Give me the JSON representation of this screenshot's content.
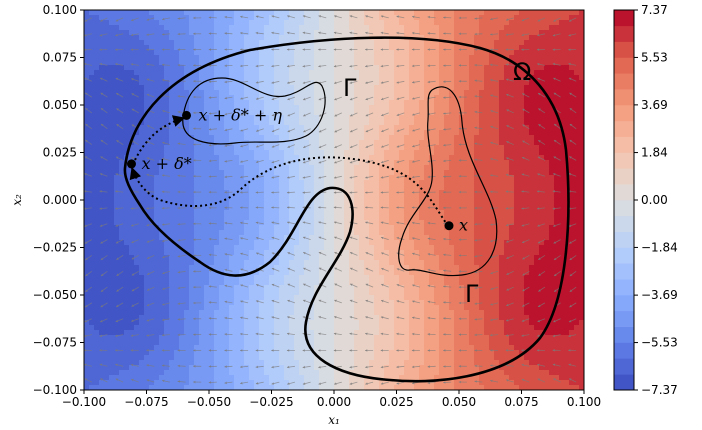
{
  "chart_data": {
    "type": "heatmap",
    "xlabel": "x₁",
    "ylabel": "x₂",
    "xlim": [
      -0.1,
      0.1
    ],
    "ylim": [
      -0.1,
      0.1
    ],
    "x_ticks": [
      -0.1,
      -0.075,
      -0.05,
      -0.025,
      0.0,
      0.025,
      0.05,
      0.075,
      0.1
    ],
    "x_tick_labels": [
      "−0.100",
      "−0.075",
      "−0.050",
      "−0.025",
      "0.000",
      "0.025",
      "0.050",
      "0.075",
      "0.100"
    ],
    "y_ticks": [
      -0.1,
      -0.075,
      -0.05,
      -0.025,
      0.0,
      0.025,
      0.05,
      0.075,
      0.1
    ],
    "y_tick_labels": [
      "−0.100",
      "−0.075",
      "−0.050",
      "−0.025",
      "0.000",
      "0.025",
      "0.050",
      "0.075",
      "0.100"
    ],
    "colorbar": {
      "colormap": "coolwarm",
      "range": [
        -7.37,
        7.37
      ],
      "ticks": [
        7.37,
        5.53,
        3.69,
        1.84,
        0.0,
        -1.84,
        -3.69,
        -5.53,
        -7.37
      ],
      "tick_labels": [
        "7.37",
        "5.53",
        "3.69",
        "1.84",
        "0.00",
        "−1.84",
        "−3.69",
        "−5.53",
        "−7.37"
      ],
      "levels": 24
    },
    "quiver": true,
    "regions": {
      "omega_label": "Ω",
      "gamma_label_top": "Γ",
      "gamma_label_bottom": "Γ"
    },
    "points": [
      {
        "label": "x",
        "x": 0.046,
        "y": -0.0135
      },
      {
        "label": "x + δ* ",
        "x": -0.081,
        "y": 0.019
      },
      {
        "label": "x + δ* + η",
        "x": -0.059,
        "y": 0.0445
      }
    ]
  },
  "colors": {
    "cold": "#3b4cc0",
    "neutral": "#dddddd",
    "hot": "#b40426"
  }
}
